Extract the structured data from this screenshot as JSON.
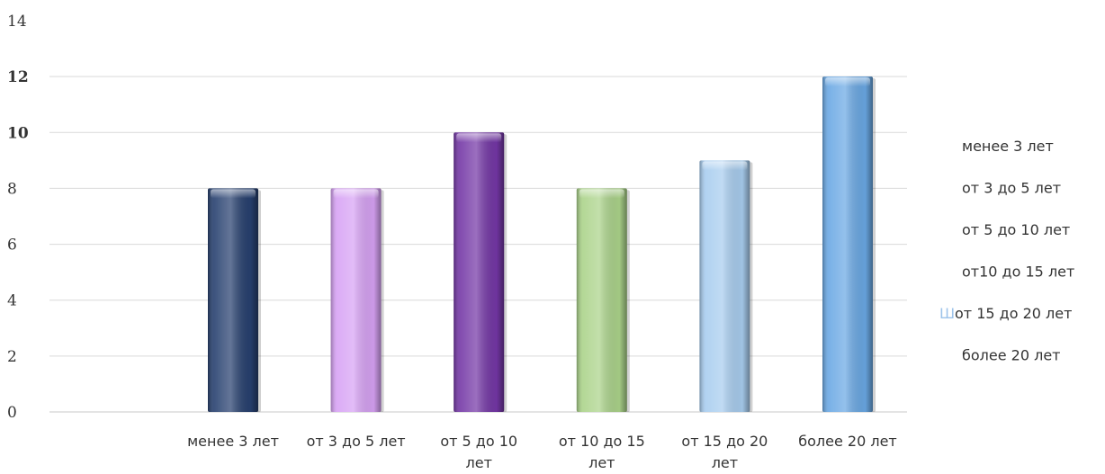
{
  "chart_data": {
    "type": "bar",
    "categories": [
      "менее 3 лет",
      "от 3 до 5 лет",
      "от 5 до 10 лет",
      "от 10 до 15 лет",
      "от 15 до 20 лет",
      "более 20 лет"
    ],
    "category_lines": [
      [
        "менее 3 лет"
      ],
      [
        "от 3 до 5 лет"
      ],
      [
        "от 5 до 10",
        "лет"
      ],
      [
        "от 10 до 15",
        "лет"
      ],
      [
        "от 15 до 20",
        "лет"
      ],
      [
        "более 20 лет"
      ]
    ],
    "values": [
      8,
      8,
      10,
      8,
      9,
      12
    ],
    "colors": [
      "#27406f",
      "#d7a2f4",
      "#7437a6",
      "#abd38a",
      "#a8cdef",
      "#6aa8e4"
    ],
    "ylim": [
      0,
      14
    ],
    "yticks": [
      0,
      2,
      4,
      6,
      8,
      10,
      12,
      14
    ],
    "yticks_bold": [
      10,
      12
    ],
    "grid": true,
    "legend": {
      "placement": "right",
      "entries": [
        "менее 3 лет",
        "от 3 до 5 лет",
        "от 5 до 10 лет",
        "от10 до 15 лет",
        "от 15 до 20 лет",
        "более 20 лет"
      ],
      "glyphs": [
        "",
        "",
        "",
        "",
        "Ш",
        ""
      ],
      "glyph_color": "#9dc3ea"
    }
  }
}
